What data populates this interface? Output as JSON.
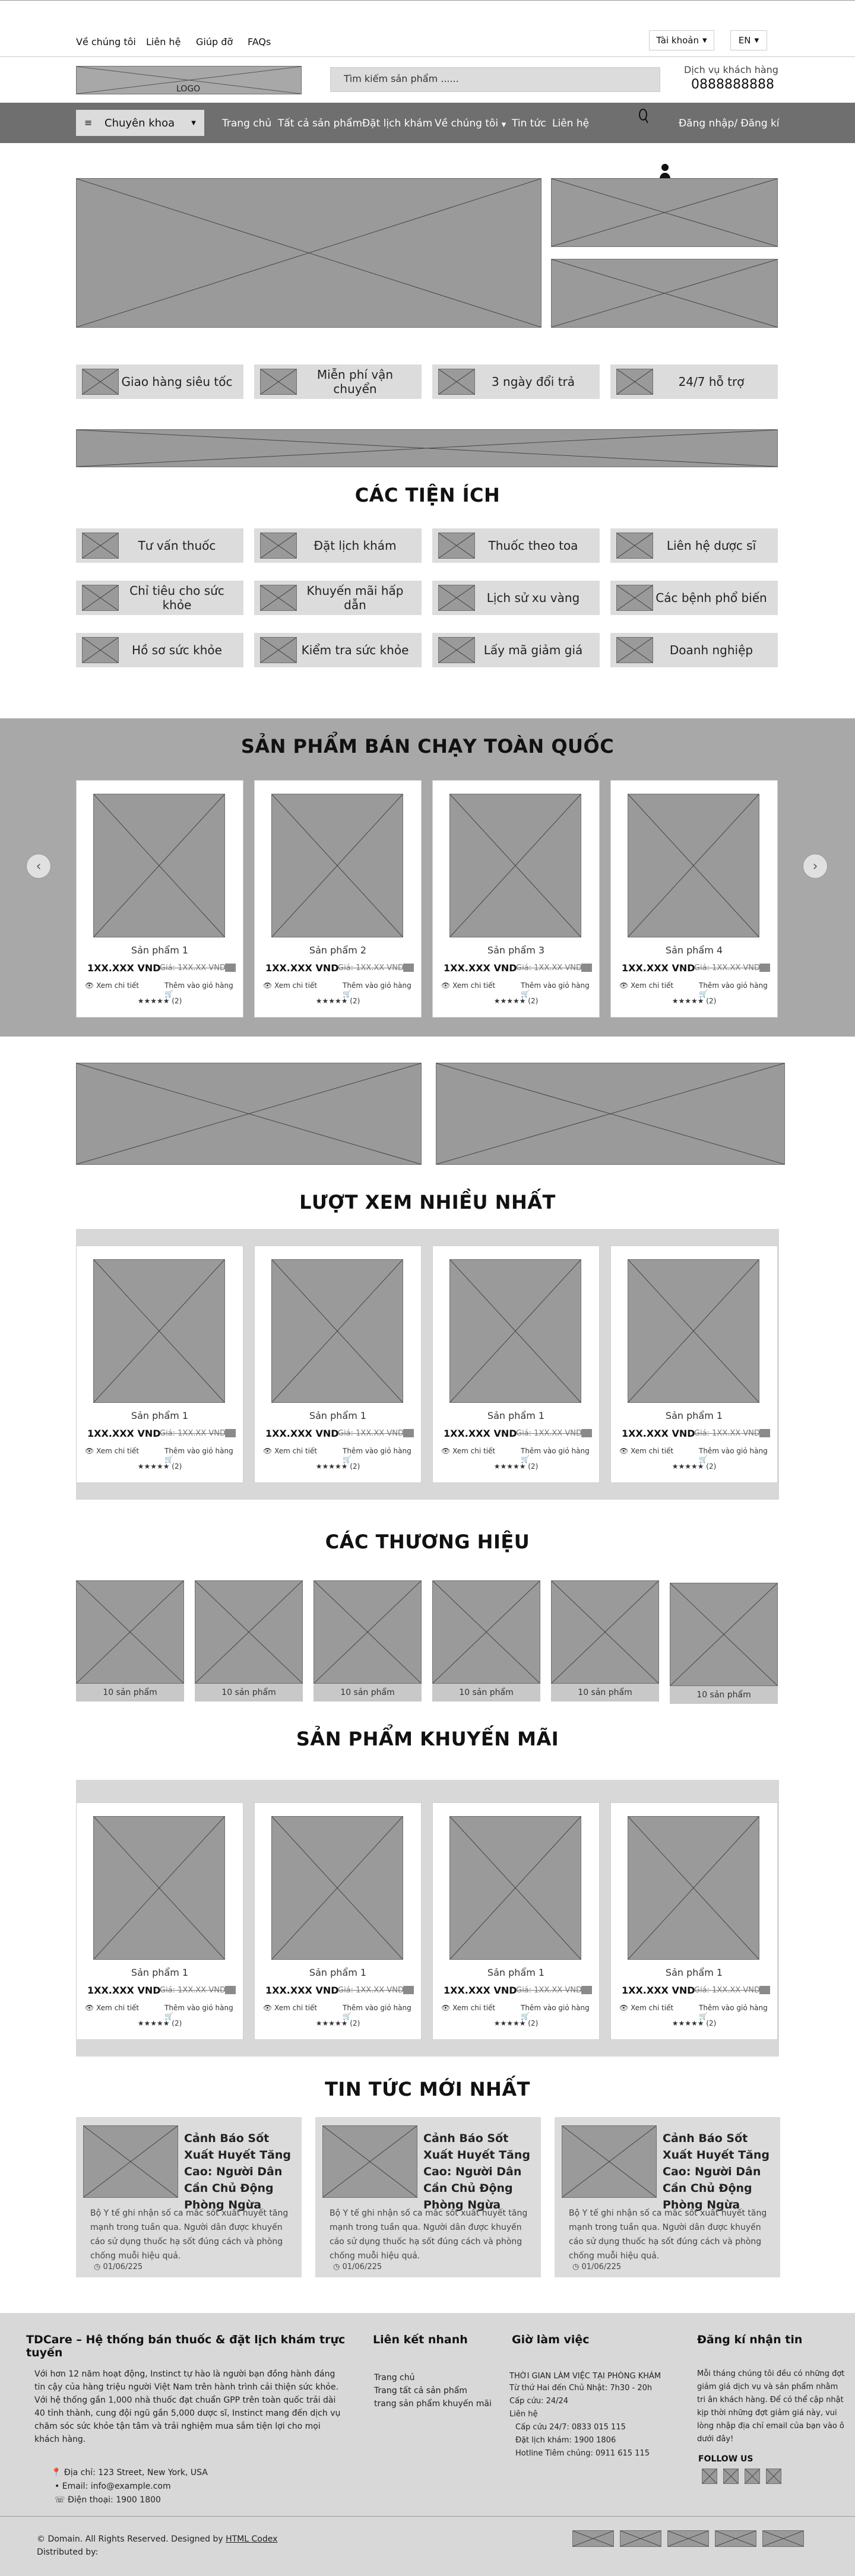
{
  "topbar": {
    "links": [
      "Về chúng tôi",
      "Liên hệ",
      "Giúp đỡ",
      "FAQs"
    ],
    "account": "Tài khoản",
    "lang": "EN"
  },
  "header": {
    "logo": "LOGO",
    "search_placeholder": "Tìm kiếm sản phẩm ......",
    "support_label": "Dịch vụ khách hàng",
    "support_phone": "0888888888"
  },
  "nav": {
    "category_btn": "Chuyên khoa",
    "items": [
      "Trang chủ",
      "Tất cả sản phẩm",
      "Đặt lịch khám",
      "Về chúng tôi",
      "Tin tức",
      "Liên hệ"
    ],
    "login": "Đăng nhập/ Đăng kí"
  },
  "features": [
    "Giao hàng siêu tốc",
    "Miễn phí vận chuyển",
    "3 ngày đổi trả",
    "24/7 hỗ trợ"
  ],
  "utilities": {
    "title": "CÁC TIỆN ÍCH",
    "items": [
      "Tư vấn thuốc",
      "Đặt lịch khám",
      "Thuốc theo toa",
      "Liên hệ dược sĩ",
      "Chỉ tiêu cho sức khỏe",
      "Khuyến mãi hấp dẫn",
      "Lịch sử xu vàng",
      "Các bệnh phổ biến",
      "Hồ sơ sức khỏe",
      "Kiểm tra sức khỏe",
      "Lấy mã giảm giá",
      "Doanh nghiệp"
    ]
  },
  "product_common": {
    "price": "1XX.XXX VND",
    "old_price": "Giá: 1XX.XX VND",
    "detail": "Xem chi tiết",
    "add_cart": "Thêm vào giỏ hàng",
    "stars": "★★★★★ (2)"
  },
  "bestseller": {
    "title": "SẢN PHẨM BÁN CHẠY TOÀN QUỐC",
    "names": [
      "Sản phẩm 1",
      "Sản phẩm 2",
      "Sản phẩm 3",
      "Sản phẩm 4"
    ]
  },
  "mostviewed": {
    "title": "LƯỢT XEM NHIỀU NHẤT",
    "names": [
      "Sản phẩm 1",
      "Sản phẩm 1",
      "Sản phẩm 1",
      "Sản phẩm 1"
    ]
  },
  "brands": {
    "title": "CÁC THƯƠNG HIỆU",
    "items": [
      "10 sản phẩm",
      "10 sản phẩm",
      "10 sản phẩm",
      "10 sản phẩm",
      "10 sản phẩm",
      "10 sản phẩm"
    ]
  },
  "promo": {
    "title": "SẢN PHẨM KHUYẾN MÃI",
    "names": [
      "Sản phẩm 1",
      "Sản phẩm 1",
      "Sản phẩm 1",
      "Sản phẩm 1"
    ]
  },
  "news": {
    "title": "TIN TỨC MỚI NHẤT",
    "items": [
      {
        "title": "Cảnh Báo Sốt Xuất Huyết Tăng Cao: Người Dân Cần Chủ Động Phòng Ngừa",
        "desc": "Bộ Y tế ghi nhận số ca mắc sốt xuất huyết tăng mạnh trong tuần qua. Người dân được khuyến cáo sử dụng thuốc hạ sốt đúng cách và phòng chống muỗi hiệu quả.",
        "date": "01/06/225"
      },
      {
        "title": "Cảnh Báo Sốt Xuất Huyết Tăng Cao: Người Dân Cần Chủ Động Phòng Ngừa",
        "desc": "Bộ Y tế ghi nhận số ca mắc sốt xuất huyết tăng mạnh trong tuần qua. Người dân được khuyến cáo sử dụng thuốc hạ sốt đúng cách và phòng chống muỗi hiệu quả.",
        "date": "01/06/225"
      },
      {
        "title": "Cảnh Báo Sốt Xuất Huyết Tăng Cao: Người Dân Cần Chủ Động Phòng Ngừa",
        "desc": "Bộ Y tế ghi nhận số ca mắc sốt xuất huyết tăng mạnh trong tuần qua. Người dân được khuyến cáo sử dụng thuốc hạ sốt đúng cách và phòng chống muỗi hiệu quả.",
        "date": "01/06/225"
      }
    ]
  },
  "footer": {
    "brand_title": "TDCare – Hệ thống bán thuốc & đặt lịch khám trực tuyến",
    "about": "Với hơn 12 năm hoạt động, Instinct tự hào là người bạn đồng hành đáng tin cậy của hàng triệu người Việt Nam trên hành trình cải thiện sức khỏe. Với hệ thống gần 1,000 nhà thuốc đạt chuẩn GPP trên toàn quốc trải dài 40 tỉnh thành, cung đội ngũ gần 5,000 dược sĩ, Instinct mang đến dịch vụ chăm sóc sức khỏe tận tâm và trải nghiệm mua sắm tiện lợi cho mọi khách hàng.",
    "address": "Địa chỉ: 123 Street, New York, USA",
    "email": "Email: info@example.com",
    "phone": "Điện thoại: 1900 1800",
    "quick_title": "Liên kết nhanh",
    "quick_links": [
      "Trang chủ",
      "Trang tất cả sản phẩm",
      "trang sản phẩm khuyến mãi"
    ],
    "hours_title": "Giờ làm việc",
    "hours": [
      "THỜI GIAN LÀM VIỆC TẠI PHÒNG KHÁM",
      "Từ thứ Hai đến Chủ Nhật: 7h30 - 20h",
      "Cấp cứu: 24/24",
      "Liên hệ",
      "Cấp cứu 24/7: 0833 015 115",
      "Đặt lịch khám: 1900 1806",
      "Hotline Tiêm chủng: 0911 615 115"
    ],
    "newsletter_title": "Đăng kí nhận tin",
    "newsletter_text": "Mỗi tháng chúng tôi đều có những đợt giảm giá dịch vụ và sản phẩm nhằm tri ân khách hàng. Để có thể cập nhật kịp thời những đợt giảm giá này, vui lòng nhập địa chỉ email của bạn vào ô dưới đây!",
    "follow": "FOLLOW US",
    "copyright": "© Domain. All Rights Reserved. Designed by",
    "copyright_link": "HTML Codex",
    "distributed": "Distributed by:"
  }
}
